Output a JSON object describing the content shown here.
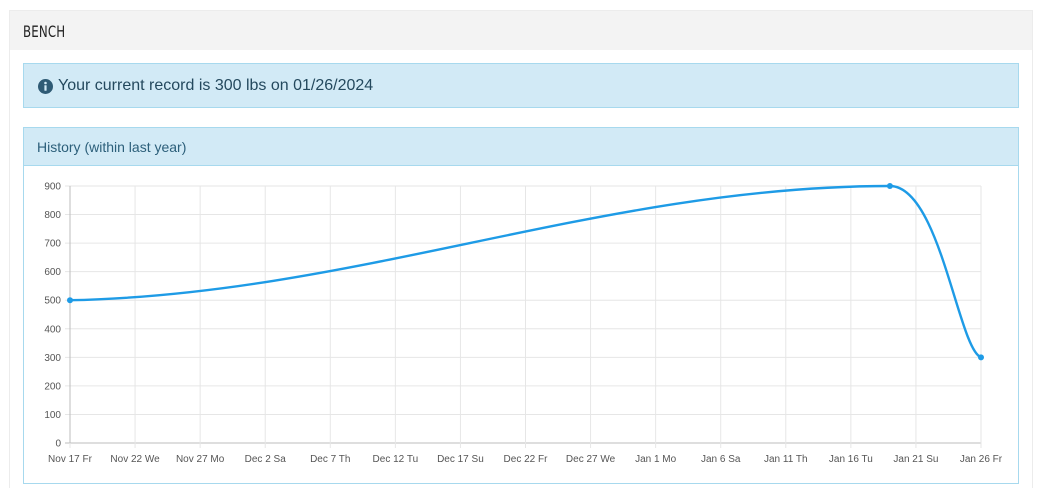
{
  "section": {
    "title": "BENCH"
  },
  "alert": {
    "icon": "info-circle-icon",
    "text": "Your current record is 300 lbs on 01/26/2024",
    "background": "#d2eaf6",
    "border": "#a7d9ee"
  },
  "panel": {
    "title": "History (within last year)"
  },
  "chart_data": {
    "type": "line",
    "x_labels": [
      "Nov 17 Fr",
      "Nov 22 We",
      "Nov 27 Mo",
      "Dec 2 Sa",
      "Dec 7 Th",
      "Dec 12 Tu",
      "Dec 17 Su",
      "Dec 22 Fr",
      "Dec 27 We",
      "Jan 1 Mo",
      "Jan 6 Sa",
      "Jan 11 Th",
      "Jan 16 Tu",
      "Jan 21 Su",
      "Jan 26 Fr"
    ],
    "x_range": [
      "2023-11-17",
      "2024-01-26"
    ],
    "y_ticks": [
      0,
      100,
      200,
      300,
      400,
      500,
      600,
      700,
      800,
      900
    ],
    "ylim": [
      0,
      900
    ],
    "series": [
      {
        "color": "#1e9be6",
        "points": [
          {
            "x": "2023-11-17",
            "y": 500
          },
          {
            "x": "2024-01-19",
            "y": 900
          },
          {
            "x": "2024-01-26",
            "y": 300
          }
        ]
      }
    ],
    "grid": true,
    "legend": "none"
  }
}
